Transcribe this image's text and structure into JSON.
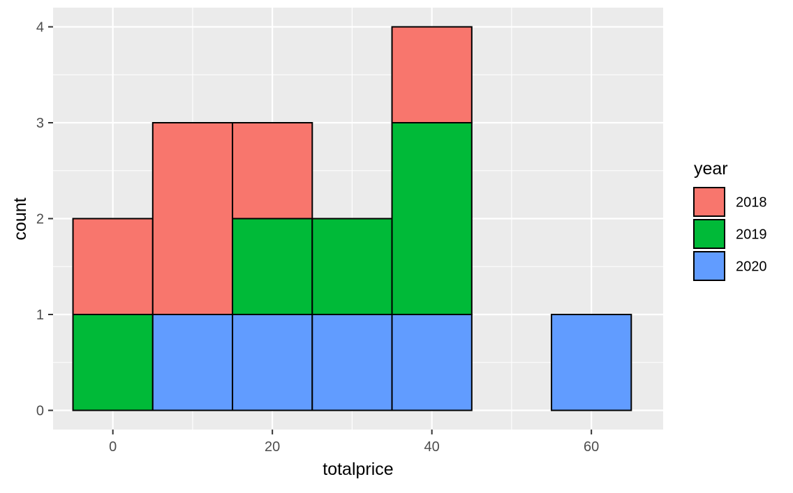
{
  "chart_data": {
    "type": "bar",
    "stacked": true,
    "histogram": true,
    "title": "",
    "xlabel": "totalprice",
    "ylabel": "count",
    "xlim": [
      -7.5,
      69
    ],
    "ylim": [
      -0.2,
      4.2
    ],
    "x_ticks": [
      0,
      20,
      40,
      60
    ],
    "y_ticks": [
      0,
      1,
      2,
      3,
      4
    ],
    "bin_width": 10,
    "bins": [
      {
        "x0": -5,
        "x1": 5
      },
      {
        "x0": 5,
        "x1": 15
      },
      {
        "x0": 15,
        "x1": 25
      },
      {
        "x0": 25,
        "x1": 35
      },
      {
        "x0": 35,
        "x1": 45
      },
      {
        "x0": 45,
        "x1": 55
      },
      {
        "x0": 55,
        "x1": 65
      }
    ],
    "series": [
      {
        "name": "2020",
        "color": "#619CFF",
        "values": [
          0,
          1,
          1,
          1,
          1,
          0,
          1
        ]
      },
      {
        "name": "2019",
        "color": "#00BA38",
        "values": [
          1,
          0,
          1,
          1,
          2,
          0,
          0
        ]
      },
      {
        "name": "2018",
        "color": "#F8766D",
        "values": [
          1,
          2,
          1,
          0,
          1,
          0,
          0
        ]
      }
    ],
    "stack_order": [
      "2020",
      "2019",
      "2018"
    ],
    "legend": {
      "title": "year",
      "placement": "right",
      "items": [
        "2018",
        "2019",
        "2020"
      ]
    },
    "grid": true,
    "panel_background": "#EBEBEB",
    "grid_color": "#FFFFFF",
    "bar_outline": "#000000"
  }
}
